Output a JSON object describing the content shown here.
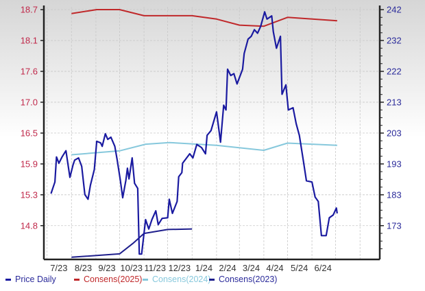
{
  "chart_data": {
    "type": "line",
    "title": "",
    "x_type": "date",
    "xlim": [
      "2023-06-27",
      "2024-08-26"
    ],
    "x_tick_labels": [
      "7/23",
      "8/23",
      "9/23",
      "10/23",
      "11/23",
      "12/23",
      "1/24",
      "2/24",
      "3/24",
      "4/24",
      "5/24",
      "6/24"
    ],
    "x_tick_dates": [
      "2023-07-16",
      "2023-08-16",
      "2023-09-15",
      "2023-10-16",
      "2023-11-15",
      "2023-12-16",
      "2024-01-16",
      "2024-02-15",
      "2024-03-16",
      "2024-04-15",
      "2024-05-16",
      "2024-06-15"
    ],
    "grid": true,
    "left_axis": {
      "ylim": [
        14.19,
        18.75
      ],
      "tick_labels": [
        "18.7",
        "18.1",
        "17.6",
        "17.0",
        "16.5",
        "15.9",
        "15.3",
        "14.8"
      ],
      "color": "#c0284a"
    },
    "right_axis": {
      "ylim": [
        162.3,
        242.9
      ],
      "tick_labels": [
        "242",
        "232",
        "222",
        "213",
        "203",
        "193",
        "183",
        "173"
      ],
      "color": "#2a2a9a"
    },
    "legend_position": "bottom",
    "series": [
      {
        "name": "Price Daily",
        "axis": "right",
        "color": "#1a1aa0",
        "x": [
          "2023-07-06",
          "2023-07-11",
          "2023-07-13",
          "2023-07-16",
          "2023-07-20",
          "2023-07-25",
          "2023-07-30",
          "2023-08-03",
          "2023-08-05",
          "2023-08-10",
          "2023-08-14",
          "2023-08-18",
          "2023-08-22",
          "2023-08-25",
          "2023-08-30",
          "2023-09-02",
          "2023-09-07",
          "2023-09-09",
          "2023-09-13",
          "2023-09-16",
          "2023-09-20",
          "2023-09-25",
          "2023-09-28",
          "2023-10-02",
          "2023-10-05",
          "2023-10-09",
          "2023-10-11",
          "2023-10-13",
          "2023-10-17",
          "2023-10-20",
          "2023-10-24",
          "2023-10-26",
          "2023-10-29",
          "2023-11-03",
          "2023-11-07",
          "2023-11-11",
          "2023-11-16",
          "2023-11-19",
          "2023-11-24",
          "2023-12-01",
          "2023-12-03",
          "2023-12-07",
          "2023-12-13",
          "2023-12-15",
          "2023-12-19",
          "2023-12-20",
          "2023-12-25",
          "2023-12-29",
          "2024-01-02",
          "2024-01-07",
          "2024-01-13",
          "2024-01-18",
          "2024-01-20",
          "2024-01-25",
          "2024-02-01",
          "2024-02-03",
          "2024-02-06",
          "2024-02-10",
          "2024-02-13",
          "2024-02-15",
          "2024-02-19",
          "2024-02-23",
          "2024-02-27",
          "2024-03-05",
          "2024-03-07",
          "2024-03-12",
          "2024-03-16",
          "2024-03-20",
          "2024-03-24",
          "2024-03-28",
          "2024-04-02",
          "2024-04-05",
          "2024-04-11",
          "2024-04-13",
          "2024-04-17",
          "2024-04-22",
          "2024-04-24",
          "2024-04-29",
          "2024-05-02",
          "2024-05-08",
          "2024-05-12",
          "2024-05-16",
          "2024-05-21",
          "2024-05-25",
          "2024-06-01",
          "2024-06-05",
          "2024-06-09",
          "2024-06-13",
          "2024-06-19",
          "2024-06-23",
          "2024-06-28",
          "2024-07-02",
          "2024-07-03"
        ],
        "y": [
          183.3,
          187,
          195,
          193,
          195,
          197,
          188.5,
          192.5,
          194,
          194.7,
          192,
          183,
          181.5,
          186,
          191,
          200,
          199.5,
          198.4,
          202.4,
          200.6,
          201.3,
          198.4,
          194,
          187.5,
          182,
          187.5,
          191.4,
          188,
          194.7,
          186.6,
          185,
          164,
          164,
          175,
          172,
          175,
          177.8,
          173.4,
          175.4,
          175.6,
          181.5,
          177,
          180.8,
          188.7,
          190,
          193,
          194.7,
          196,
          194.7,
          199,
          198,
          196,
          201.9,
          203.4,
          209.4,
          205.6,
          199.7,
          211.5,
          210,
          223,
          221,
          221.6,
          218.3,
          223,
          228,
          232.6,
          233.5,
          235.6,
          234.5,
          236.7,
          241.3,
          239,
          240,
          235,
          229.7,
          233.5,
          215,
          218,
          210,
          210.7,
          205.6,
          201.9,
          194,
          187.4,
          187,
          182.2,
          180.8,
          169.9,
          169.9,
          175.6,
          176.5,
          178.7,
          177
        ]
      },
      {
        "name": "Consens(2025)",
        "axis": "left",
        "color": "#c0282a",
        "x": [
          "2023-08-01",
          "2023-09-02",
          "2023-10-01",
          "2023-11-01",
          "2024-01-01",
          "2024-02-01",
          "2024-03-01",
          "2024-04-01",
          "2024-05-01",
          "2024-07-03"
        ],
        "y": [
          18.63,
          18.7,
          18.7,
          18.59,
          18.59,
          18.53,
          18.42,
          18.4,
          18.56,
          18.5
        ]
      },
      {
        "name": "Consens(2024)",
        "axis": "left",
        "color": "#86c8dc",
        "x": [
          "2023-08-01",
          "2023-10-01",
          "2023-11-03",
          "2023-12-03",
          "2024-02-01",
          "2024-04-01",
          "2024-05-01",
          "2024-07-03"
        ],
        "y": [
          16.08,
          16.15,
          16.27,
          16.3,
          16.25,
          16.16,
          16.29,
          16.25
        ]
      },
      {
        "name": "Consens(2023)",
        "axis": "left",
        "color": "#1e1e8c",
        "x": [
          "2023-08-01",
          "2023-10-01",
          "2023-10-18",
          "2023-11-01",
          "2023-12-01",
          "2024-01-01"
        ],
        "y": [
          14.23,
          14.29,
          14.48,
          14.66,
          14.73,
          14.74
        ]
      }
    ]
  },
  "legend": [
    "Price Daily",
    "Consens(2025)",
    "Consens(2024)",
    "Consens(2023)"
  ]
}
